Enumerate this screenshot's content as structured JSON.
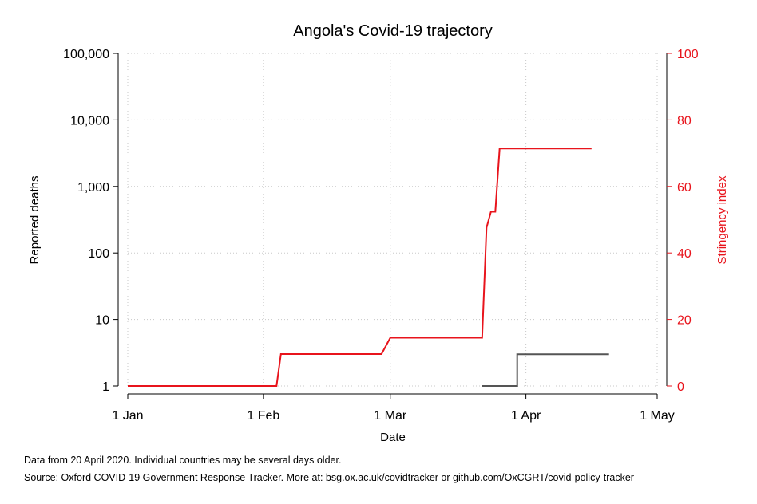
{
  "chart_data": {
    "type": "line",
    "title": "Angola's Covid-19 trajectory",
    "xlabel": "Date",
    "ylabel": "Reported deaths",
    "y2label": "Stringency index",
    "x_ticks": [
      "1 Jan",
      "1 Feb",
      "1 Mar",
      "1 Apr",
      "1 May"
    ],
    "x_tick_dates": [
      "2020-01-01",
      "2020-02-01",
      "2020-03-01",
      "2020-04-01",
      "2020-05-01"
    ],
    "xlim": [
      "2020-01-01",
      "2020-05-01"
    ],
    "y_scale": "log",
    "ylim": [
      1,
      100000
    ],
    "y_ticks": [
      1,
      10,
      100,
      1000,
      10000,
      100000
    ],
    "y_tick_labels": [
      "1",
      "10",
      "100",
      "1,000",
      "10,000",
      "100,000"
    ],
    "y2lim": [
      0,
      100
    ],
    "y2_ticks": [
      0,
      20,
      40,
      60,
      80,
      100
    ],
    "y2_tick_labels": [
      "0",
      "20",
      "40",
      "60",
      "80",
      "100"
    ],
    "grid": true,
    "series": [
      {
        "axis": "left",
        "color": "#555555",
        "style": "step",
        "x": [
          "2020-03-22",
          "2020-03-28",
          "2020-03-30",
          "2020-04-20"
        ],
        "y": [
          1,
          1,
          3,
          3
        ]
      },
      {
        "axis": "right",
        "color": "#e8141c",
        "style": "line",
        "x": [
          "2020-01-01",
          "2020-02-04",
          "2020-02-05",
          "2020-02-28",
          "2020-03-01",
          "2020-03-22",
          "2020-03-23",
          "2020-03-24",
          "2020-03-25",
          "2020-03-26",
          "2020-03-27",
          "2020-04-16"
        ],
        "y": [
          0,
          0,
          9.6,
          9.6,
          14.5,
          14.5,
          47.6,
          52.4,
          52.4,
          71.4,
          71.4,
          71.4
        ]
      }
    ]
  },
  "notes": {
    "line1": "Data from 20 April 2020. Individual countries may be several days older.",
    "line2": "Source: Oxford COVID-19 Government Response Tracker. More at: bsg.ox.ac.uk/covidtracker or github.com/OxCGRT/covid-policy-tracker"
  }
}
